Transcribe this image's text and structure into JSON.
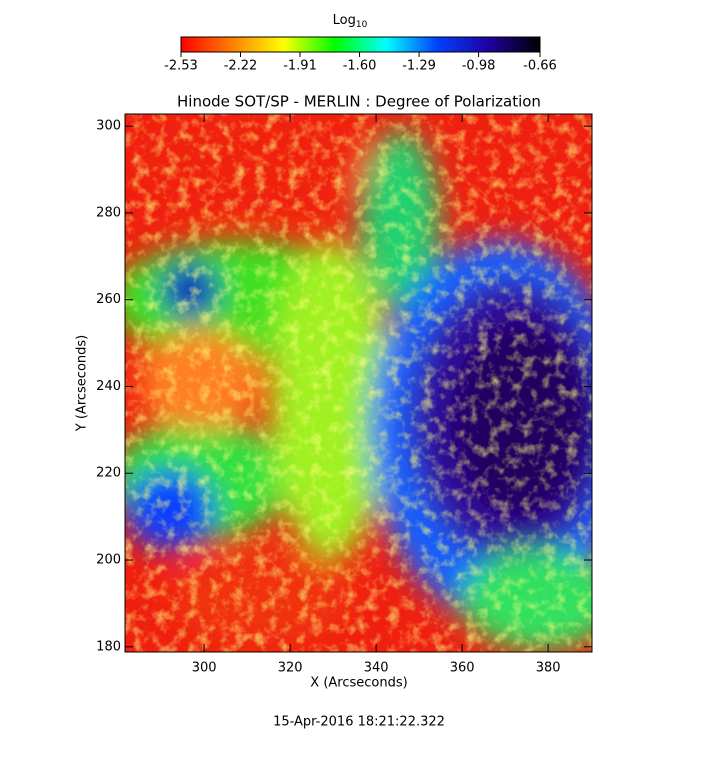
{
  "chart_data": {
    "type": "image",
    "title": "Hinode SOT/SP - MERLIN : Degree of Polarization",
    "x_label": "X (Arcseconds)",
    "y_label": "Y (Arcseconds)",
    "footer": "15-Apr-2016 18:21:22.322",
    "xlim": [
      281.6,
      390.2
    ],
    "xticks": [
      300,
      320,
      340,
      360,
      380
    ],
    "ylim": [
      178.8,
      302.8
    ],
    "yticks": [
      180,
      200,
      220,
      240,
      260,
      280,
      300
    ],
    "colorbar": {
      "label": "Log",
      "label_subscript": "10",
      "lim": [
        -2.53,
        -0.66
      ],
      "ticks": [
        -2.53,
        -2.22,
        -1.91,
        {
          "value": -1.6,
          "label": "-1.60"
        },
        -1.29,
        -0.98,
        -0.66
      ],
      "colors": [
        "#ff0000",
        "#ff8000",
        "#ffff00",
        "#00ff00",
        "#00ffff",
        "#0040ff",
        "#2000a0",
        "#000000"
      ]
    }
  }
}
